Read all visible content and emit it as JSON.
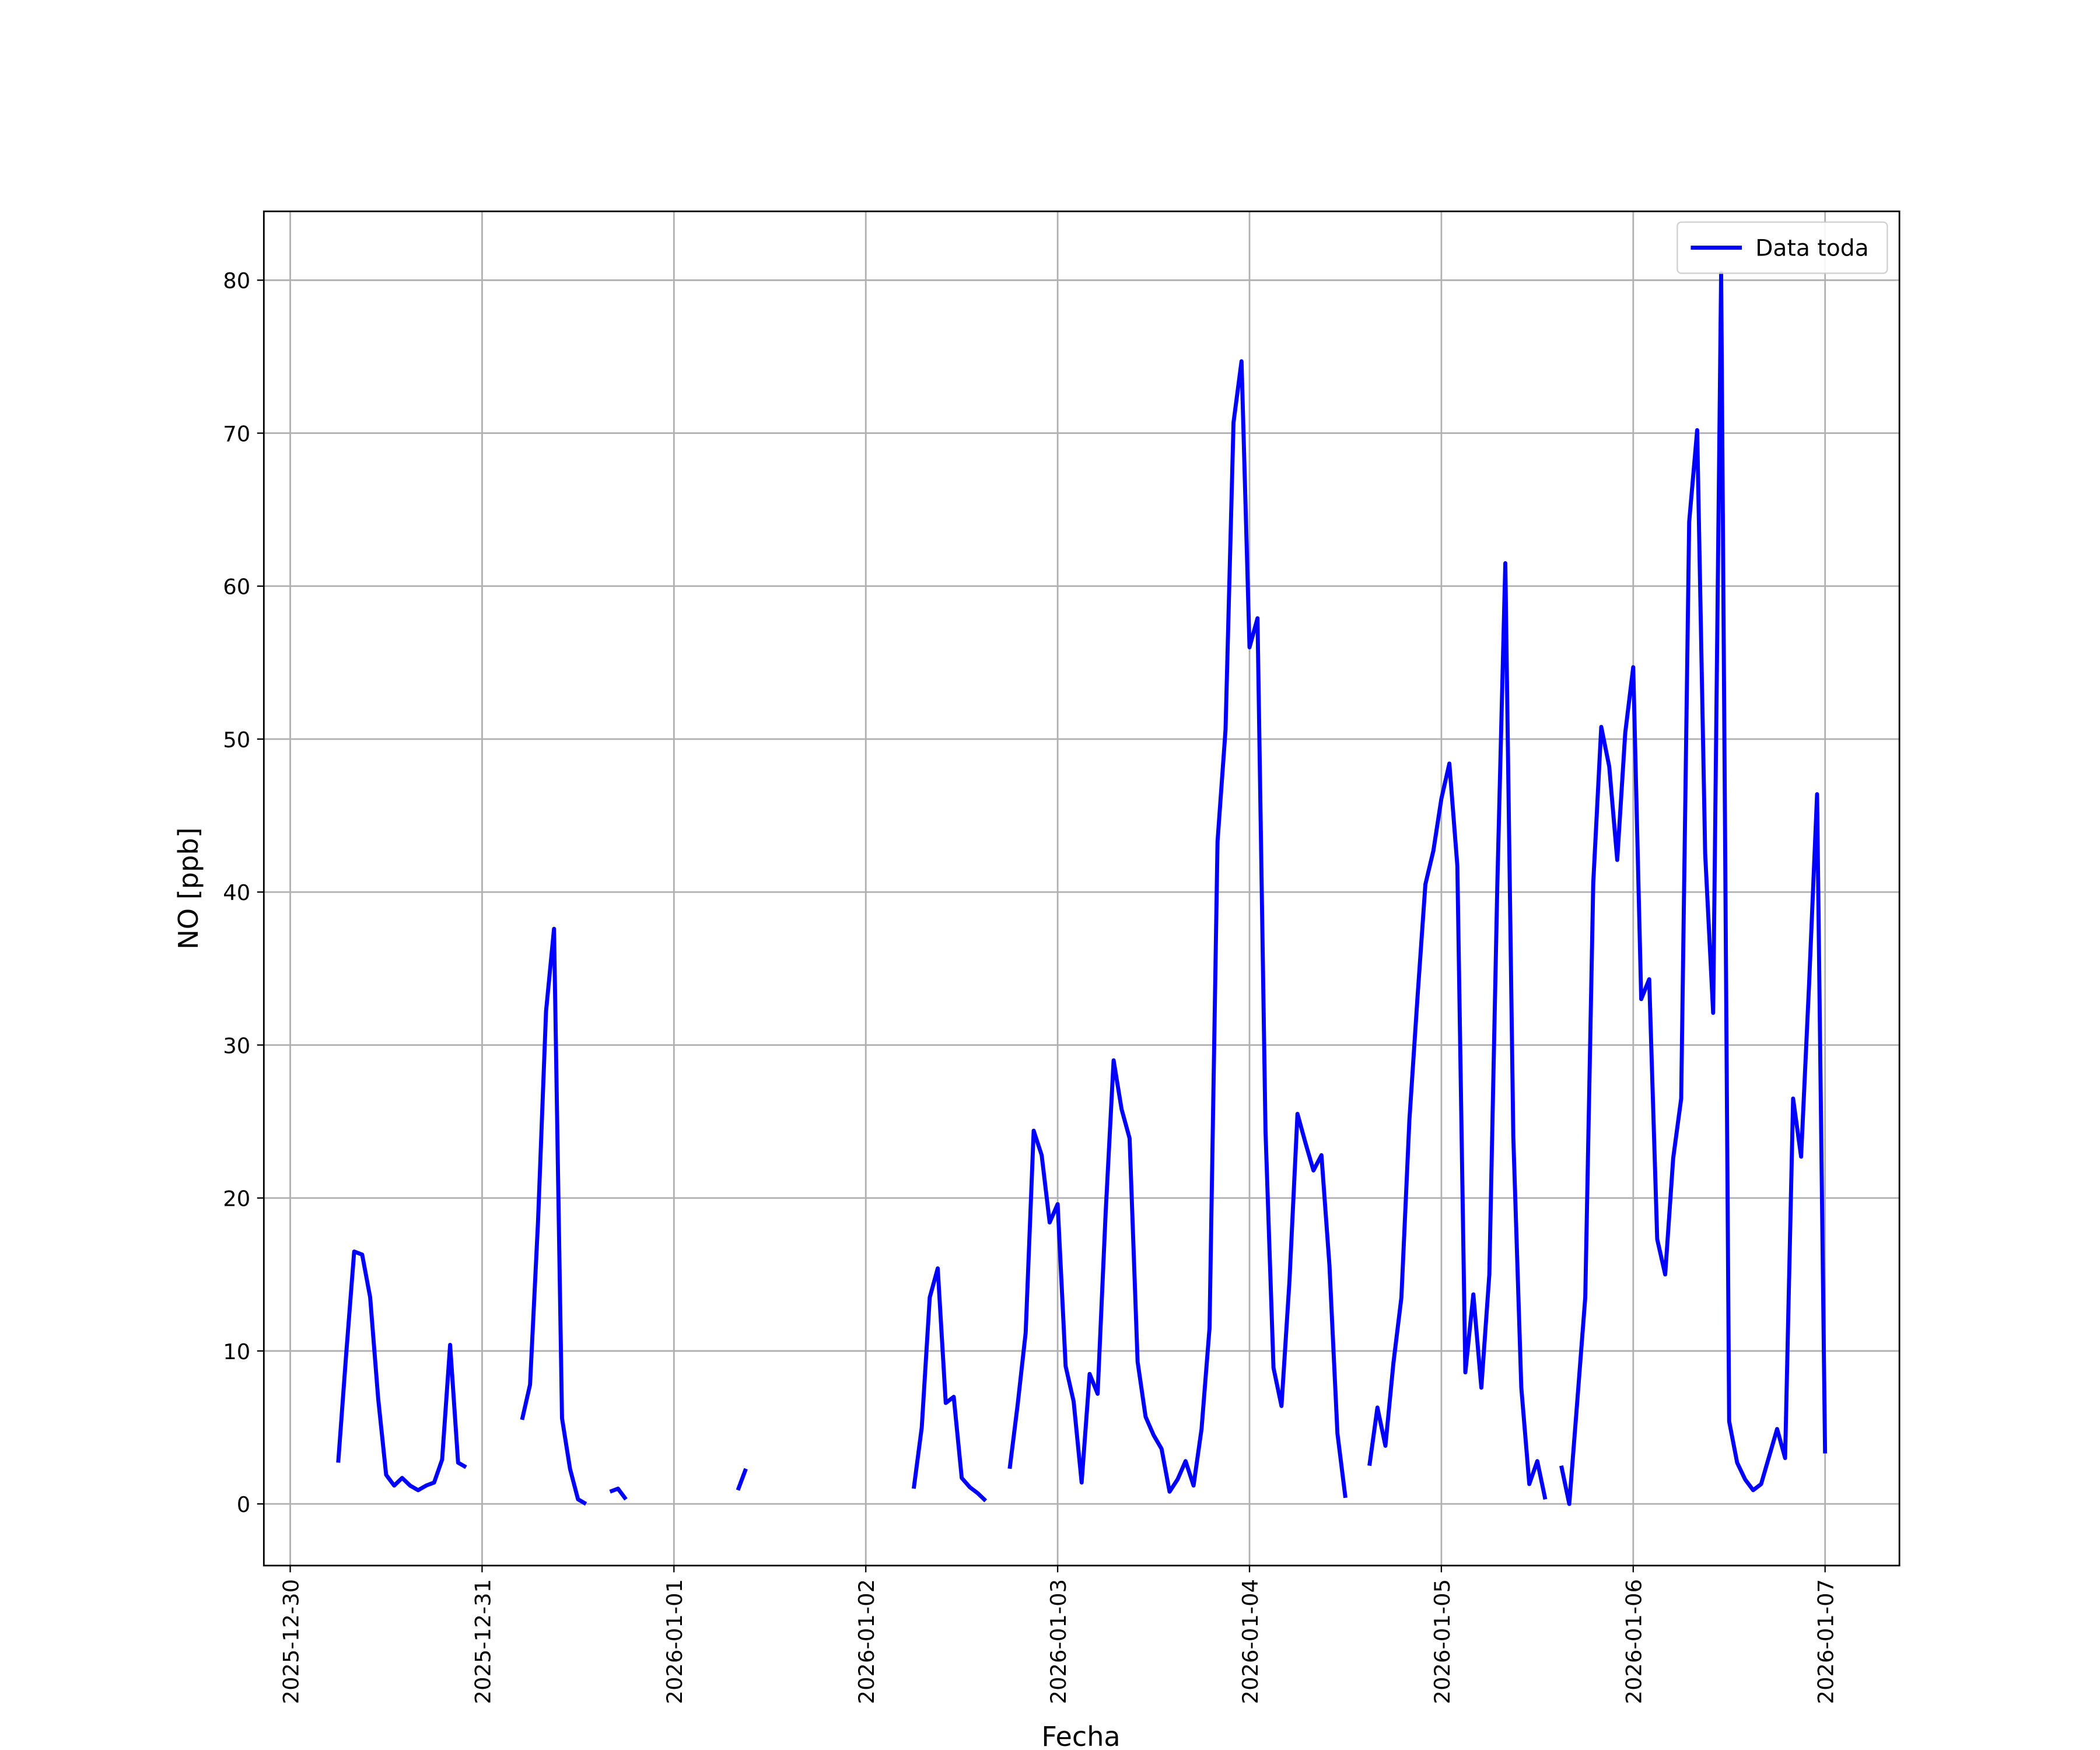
{
  "chart_data": {
    "type": "line",
    "x_label": "Fecha",
    "y_label": "NO [ppb]",
    "x": [
      "2025-12-30 06:00",
      "2025-12-30 07:00",
      "2025-12-30 08:00",
      "2025-12-30 09:00",
      "2025-12-30 10:00",
      "2025-12-30 11:00",
      "2025-12-30 12:00",
      "2025-12-30 13:00",
      "2025-12-30 14:00",
      "2025-12-30 15:00",
      "2025-12-30 16:00",
      "2025-12-30 17:00",
      "2025-12-30 18:00",
      "2025-12-30 19:00",
      "2025-12-30 20:00",
      "2025-12-30 21:00",
      "2025-12-30 22:00",
      "2025-12-30 23:00",
      "2025-12-31 05:00",
      "2025-12-31 06:00",
      "2025-12-31 07:00",
      "2025-12-31 08:00",
      "2025-12-31 09:00",
      "2025-12-31 10:00",
      "2025-12-31 11:00",
      "2025-12-31 12:00",
      "2025-12-31 13:00",
      "2025-12-31 14:00",
      "2025-12-31 16:00",
      "2025-12-31 17:00",
      "2025-12-31 18:00",
      "2025-12-31 19:00",
      "2026-01-01 08:00",
      "2026-01-01 09:00",
      "2026-01-01 10:00",
      "2026-01-02 06:00",
      "2026-01-02 07:00",
      "2026-01-02 08:00",
      "2026-01-02 09:00",
      "2026-01-02 10:00",
      "2026-01-02 11:00",
      "2026-01-02 12:00",
      "2026-01-02 13:00",
      "2026-01-02 14:00",
      "2026-01-02 15:00",
      "2026-01-02 16:00",
      "2026-01-02 18:00",
      "2026-01-02 19:00",
      "2026-01-02 20:00",
      "2026-01-02 21:00",
      "2026-01-02 22:00",
      "2026-01-02 23:00",
      "2026-01-03 00:00",
      "2026-01-03 01:00",
      "2026-01-03 02:00",
      "2026-01-03 03:00",
      "2026-01-03 04:00",
      "2026-01-03 05:00",
      "2026-01-03 06:00",
      "2026-01-03 07:00",
      "2026-01-03 08:00",
      "2026-01-03 09:00",
      "2026-01-03 10:00",
      "2026-01-03 11:00",
      "2026-01-03 12:00",
      "2026-01-03 13:00",
      "2026-01-03 14:00",
      "2026-01-03 15:00",
      "2026-01-03 16:00",
      "2026-01-03 17:00",
      "2026-01-03 18:00",
      "2026-01-03 19:00",
      "2026-01-03 20:00",
      "2026-01-03 21:00",
      "2026-01-03 22:00",
      "2026-01-03 23:00",
      "2026-01-04 00:00",
      "2026-01-04 01:00",
      "2026-01-04 02:00",
      "2026-01-04 03:00",
      "2026-01-04 04:00",
      "2026-01-04 05:00",
      "2026-01-04 06:00",
      "2026-01-04 07:00",
      "2026-01-04 08:00",
      "2026-01-04 09:00",
      "2026-01-04 10:00",
      "2026-01-04 11:00",
      "2026-01-04 12:00",
      "2026-01-04 13:00",
      "2026-01-04 15:00",
      "2026-01-04 16:00",
      "2026-01-04 17:00",
      "2026-01-04 18:00",
      "2026-01-04 19:00",
      "2026-01-04 20:00",
      "2026-01-04 21:00",
      "2026-01-04 22:00",
      "2026-01-04 23:00",
      "2026-01-05 00:00",
      "2026-01-05 01:00",
      "2026-01-05 02:00",
      "2026-01-05 03:00",
      "2026-01-05 04:00",
      "2026-01-05 05:00",
      "2026-01-05 06:00",
      "2026-01-05 07:00",
      "2026-01-05 08:00",
      "2026-01-05 09:00",
      "2026-01-05 10:00",
      "2026-01-05 11:00",
      "2026-01-05 12:00",
      "2026-01-05 13:00",
      "2026-01-05 14:00",
      "2026-01-05 15:00",
      "2026-01-05 16:00",
      "2026-01-05 17:00",
      "2026-01-05 18:00",
      "2026-01-05 19:00",
      "2026-01-05 20:00",
      "2026-01-05 21:00",
      "2026-01-05 22:00",
      "2026-01-05 23:00",
      "2026-01-06 00:00",
      "2026-01-06 01:00",
      "2026-01-06 02:00",
      "2026-01-06 03:00",
      "2026-01-06 04:00",
      "2026-01-06 05:00",
      "2026-01-06 06:00",
      "2026-01-06 07:00",
      "2026-01-06 08:00",
      "2026-01-06 09:00",
      "2026-01-06 10:00",
      "2026-01-06 11:00",
      "2026-01-06 12:00",
      "2026-01-06 13:00",
      "2026-01-06 14:00",
      "2026-01-06 15:00",
      "2026-01-06 16:00",
      "2026-01-06 17:00",
      "2026-01-06 18:00",
      "2026-01-06 19:00",
      "2026-01-06 20:00",
      "2026-01-06 21:00",
      "2026-01-06 22:00",
      "2026-01-06 23:00",
      "2026-01-07 00:00"
    ],
    "series": [
      {
        "name": "Data toda",
        "color": "#0000ff",
        "values": [
          2.7,
          9.8,
          16.5,
          16.3,
          13.5,
          6.9,
          1.9,
          1.2,
          1.7,
          1.2,
          0.9,
          1.2,
          1.4,
          2.9,
          10.4,
          2.7,
          2.4,
          null,
          5.5,
          7.8,
          18.5,
          32.2,
          37.6,
          5.6,
          2.3,
          0.3,
          0.0,
          null,
          0.8,
          1.0,
          0.3,
          null,
          0.9,
          2.3,
          null,
          1.0,
          5.0,
          13.5,
          15.4,
          6.6,
          7.0,
          1.7,
          1.1,
          0.7,
          0.2,
          null,
          2.3,
          6.5,
          11.2,
          24.4,
          22.8,
          18.4,
          19.6,
          9.0,
          6.7,
          1.4,
          8.5,
          7.2,
          19.0,
          29.0,
          25.8,
          23.9,
          9.3,
          5.7,
          4.5,
          3.6,
          0.8,
          1.6,
          2.8,
          1.2,
          4.9,
          11.5,
          43.3,
          50.6,
          70.7,
          74.7,
          56.0,
          57.9,
          24.4,
          8.9,
          6.4,
          14.6,
          25.5,
          23.6,
          21.8,
          22.8,
          15.6,
          4.6,
          0.4,
          null,
          2.5,
          6.3,
          3.8,
          9.2,
          13.5,
          25.1,
          33.0,
          40.5,
          42.7,
          46.1,
          48.4,
          41.7,
          8.6,
          13.7,
          7.6,
          15.0,
          40.5,
          61.5,
          24.0,
          7.6,
          1.3,
          2.8,
          0.3,
          null,
          2.5,
          0.0,
          6.7,
          13.5,
          40.6,
          50.8,
          48.2,
          42.1,
          50.4,
          54.7,
          33.0,
          34.3,
          17.3,
          15.0,
          22.6,
          26.5,
          64.2,
          70.2,
          42.5,
          32.1,
          80.5,
          5.4,
          2.7,
          1.6,
          0.9,
          1.3,
          3.1,
          4.9,
          3.0,
          26.5,
          22.7,
          34.0,
          46.4,
          3.3
        ]
      }
    ],
    "xlim": [
      "2025-12-29 20:42",
      "2026-01-07 09:18"
    ],
    "xticks": [
      "2025-12-30",
      "2025-12-31",
      "2026-01-01",
      "2026-01-02",
      "2026-01-03",
      "2026-01-04",
      "2026-01-05",
      "2026-01-06",
      "2026-01-07"
    ],
    "ylim": [
      -4.03,
      84.5
    ],
    "yticks": [
      0,
      10,
      20,
      30,
      40,
      50,
      60,
      70,
      80
    ],
    "grid": true,
    "legend": "upper right"
  }
}
